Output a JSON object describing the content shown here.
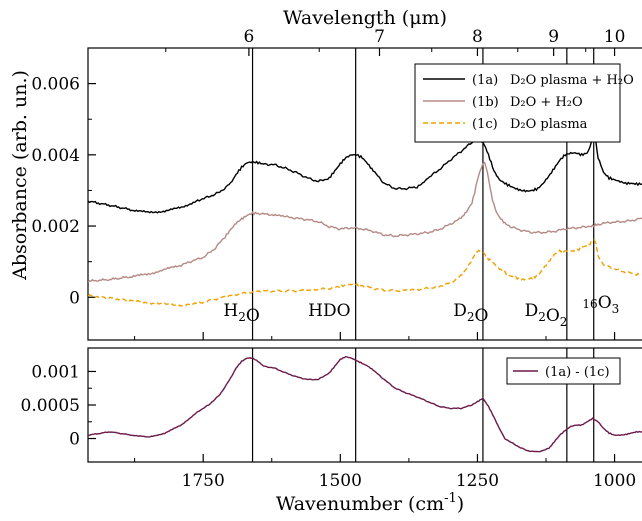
{
  "chart_data": {
    "type": "line",
    "top_axis": {
      "label": "Wavelength (μm)",
      "ticks": [
        6,
        7,
        8,
        9,
        10
      ]
    },
    "xlabel_main": "Wavenumber (cm",
    "xlabel_sup": "-1",
    "xlabel_close": ")",
    "x_ticks": [
      1750,
      1500,
      1250,
      1000
    ],
    "xlim": [
      1960,
      950
    ],
    "top_panel": {
      "ylabel": "Absorbance (arb. un.)",
      "ylim": [
        -0.0012,
        0.007
      ],
      "y_ticks": [
        0,
        0.002,
        0.004,
        0.006
      ],
      "y_tick_labels": [
        "0",
        "0.002",
        "0.004",
        "0.006"
      ],
      "legend": [
        {
          "id": "1a",
          "tag": "(1a)",
          "label": "D₂O plasma + H₂O",
          "color": "#000000",
          "dash": ""
        },
        {
          "id": "1b",
          "tag": "(1b)",
          "label": "D₂O + H₂O",
          "color": "#b58a86",
          "dash": ""
        },
        {
          "id": "1c",
          "tag": "(1c)",
          "label": "D₂O plasma",
          "color": "#f0a000",
          "dash": "5,3"
        }
      ],
      "series": [
        {
          "name": "(1a) D₂O plasma + H₂O",
          "color": "#000000",
          "x": [
            1960,
            1920,
            1880,
            1850,
            1820,
            1790,
            1760,
            1740,
            1720,
            1700,
            1690,
            1680,
            1670,
            1660,
            1650,
            1640,
            1620,
            1600,
            1580,
            1560,
            1540,
            1520,
            1510,
            1500,
            1490,
            1480,
            1470,
            1460,
            1450,
            1440,
            1420,
            1400,
            1380,
            1360,
            1350,
            1340,
            1320,
            1300,
            1280,
            1260,
            1250,
            1245,
            1240,
            1235,
            1230,
            1225,
            1220,
            1210,
            1200,
            1190,
            1180,
            1170,
            1160,
            1150,
            1140,
            1130,
            1120,
            1110,
            1100,
            1090,
            1080,
            1070,
            1060,
            1050,
            1045,
            1040,
            1037,
            1034,
            1030,
            1020,
            1010,
            1000,
            990,
            980,
            970,
            960,
            950
          ],
          "y": [
            0.0027,
            0.00258,
            0.00245,
            0.00238,
            0.00242,
            0.00252,
            0.00272,
            0.00282,
            0.00295,
            0.0032,
            0.00345,
            0.00365,
            0.00378,
            0.0038,
            0.00378,
            0.00374,
            0.00372,
            0.00362,
            0.0035,
            0.00335,
            0.00325,
            0.00335,
            0.00355,
            0.00375,
            0.00392,
            0.004,
            0.004,
            0.00392,
            0.00375,
            0.00355,
            0.0032,
            0.00305,
            0.00305,
            0.0031,
            0.0032,
            0.00335,
            0.00358,
            0.00385,
            0.0041,
            0.00435,
            0.0044,
            0.0044,
            0.00435,
            0.0042,
            0.004,
            0.00378,
            0.00355,
            0.0033,
            0.0032,
            0.00312,
            0.00305,
            0.003,
            0.00298,
            0.003,
            0.00305,
            0.0032,
            0.0034,
            0.00362,
            0.00385,
            0.004,
            0.00405,
            0.00405,
            0.004,
            0.00405,
            0.0042,
            0.00455,
            0.00458,
            0.00438,
            0.00392,
            0.0035,
            0.00335,
            0.0033,
            0.00325,
            0.0032,
            0.0032,
            0.00318,
            0.00318
          ]
        },
        {
          "name": "(1b) D₂O + H₂O",
          "color": "#b58a86",
          "x": [
            1960,
            1920,
            1880,
            1850,
            1820,
            1790,
            1770,
            1750,
            1730,
            1710,
            1700,
            1690,
            1680,
            1670,
            1660,
            1650,
            1630,
            1600,
            1580,
            1560,
            1540,
            1520,
            1500,
            1480,
            1460,
            1440,
            1420,
            1400,
            1380,
            1360,
            1340,
            1320,
            1300,
            1280,
            1270,
            1260,
            1255,
            1250,
            1245,
            1240,
            1237,
            1235,
            1232,
            1228,
            1225,
            1220,
            1215,
            1210,
            1200,
            1190,
            1170,
            1150,
            1130,
            1110,
            1090,
            1070,
            1050,
            1040,
            1030,
            1010,
            990,
            970,
            950
          ],
          "y": [
            0.00045,
            0.0005,
            0.00058,
            0.00065,
            0.00078,
            0.0009,
            0.00102,
            0.00112,
            0.00135,
            0.0017,
            0.0019,
            0.00208,
            0.0022,
            0.0023,
            0.00236,
            0.00236,
            0.00232,
            0.00226,
            0.00222,
            0.00218,
            0.00212,
            0.00198,
            0.00192,
            0.00195,
            0.00192,
            0.00185,
            0.00175,
            0.00172,
            0.00175,
            0.00178,
            0.00182,
            0.0019,
            0.00205,
            0.00222,
            0.0024,
            0.00265,
            0.00295,
            0.0033,
            0.00355,
            0.00375,
            0.00378,
            0.0037,
            0.0035,
            0.0032,
            0.0029,
            0.0026,
            0.00238,
            0.00225,
            0.00208,
            0.00198,
            0.00188,
            0.00182,
            0.00182,
            0.00185,
            0.00192,
            0.00195,
            0.00198,
            0.002,
            0.00205,
            0.0021,
            0.00212,
            0.00215,
            0.00222
          ]
        },
        {
          "name": "(1c) D₂O plasma",
          "color": "#f0a000",
          "x": [
            1960,
            1920,
            1880,
            1850,
            1820,
            1790,
            1760,
            1740,
            1720,
            1700,
            1680,
            1660,
            1640,
            1620,
            1600,
            1580,
            1560,
            1540,
            1520,
            1500,
            1490,
            1480,
            1470,
            1460,
            1440,
            1420,
            1400,
            1380,
            1360,
            1340,
            1320,
            1300,
            1280,
            1270,
            1260,
            1255,
            1250,
            1245,
            1240,
            1235,
            1230,
            1220,
            1210,
            1200,
            1190,
            1180,
            1170,
            1160,
            1150,
            1140,
            1130,
            1120,
            1110,
            1100,
            1090,
            1080,
            1070,
            1060,
            1050,
            1045,
            1040,
            1037,
            1034,
            1030,
            1020,
            1000,
            980,
            960,
            950
          ],
          "y": [
            5e-05,
            -2e-05,
            -0.0001,
            -0.00015,
            -0.0002,
            -0.00022,
            -0.00018,
            -0.0001,
            -2e-05,
            5e-05,
            0.0001,
            0.00015,
            0.00018,
            0.00017,
            0.00018,
            0.00018,
            0.0002,
            0.00022,
            0.00025,
            0.0003,
            0.00034,
            0.00036,
            0.00036,
            0.00033,
            0.00025,
            0.0002,
            0.00018,
            0.0002,
            0.00022,
            0.00025,
            0.0003,
            0.0004,
            0.0006,
            0.0008,
            0.00105,
            0.0012,
            0.0013,
            0.0013,
            0.00127,
            0.00118,
            0.00108,
            0.00095,
            0.0008,
            0.0007,
            0.0006,
            0.00055,
            0.0005,
            0.0005,
            0.00055,
            0.0006,
            0.0008,
            0.001,
            0.0012,
            0.0013,
            0.0013,
            0.0013,
            0.0013,
            0.0014,
            0.00145,
            0.0015,
            0.0016,
            0.00158,
            0.0015,
            0.00115,
            0.0009,
            0.0008,
            0.0007,
            0.00065,
            0.00063
          ]
        }
      ],
      "annotations": [
        {
          "id": "h2o",
          "parts": [
            [
              "H",
              ""
            ],
            [
              "2",
              "sub"
            ],
            [
              "O",
              ""
            ]
          ],
          "x": 1680
        },
        {
          "id": "hdo",
          "parts": [
            [
              "HDO",
              ""
            ]
          ],
          "x": 1520
        },
        {
          "id": "d2o",
          "parts": [
            [
              "D",
              ""
            ],
            [
              "2",
              "sub"
            ],
            [
              "O",
              ""
            ]
          ],
          "x": 1262
        },
        {
          "id": "d2o2",
          "parts": [
            [
              "D",
              ""
            ],
            [
              "2",
              "sub"
            ],
            [
              "O",
              ""
            ],
            [
              "2",
              "sub"
            ]
          ],
          "x": 1125
        },
        {
          "id": "o3",
          "parts": [
            [
              "16",
              "sup"
            ],
            [
              "O",
              ""
            ],
            [
              "3",
              "sub"
            ]
          ],
          "x": 1025
        }
      ],
      "vlines": [
        1660,
        1472,
        1240,
        1087,
        1038
      ]
    },
    "bottom_panel": {
      "ylim": [
        -0.00035,
        0.00135
      ],
      "y_ticks": [
        0,
        0.0005,
        0.001
      ],
      "y_tick_labels": [
        "0",
        "0.0005",
        "0.001"
      ],
      "legend": [
        {
          "label": "(1a) - (1c)",
          "color": "#6b1a4a"
        }
      ],
      "series": [
        {
          "name": "(1a) - (1c)",
          "color": "#6b1a4a",
          "x": [
            1960,
            1920,
            1880,
            1850,
            1820,
            1790,
            1760,
            1740,
            1720,
            1700,
            1690,
            1680,
            1670,
            1660,
            1650,
            1640,
            1620,
            1600,
            1580,
            1560,
            1540,
            1520,
            1510,
            1500,
            1490,
            1480,
            1470,
            1460,
            1450,
            1440,
            1420,
            1400,
            1380,
            1360,
            1340,
            1320,
            1300,
            1280,
            1260,
            1250,
            1240,
            1230,
            1220,
            1210,
            1200,
            1180,
            1160,
            1140,
            1120,
            1110,
            1100,
            1090,
            1080,
            1070,
            1060,
            1050,
            1040,
            1030,
            1020,
            1010,
            1000,
            990,
            980,
            970,
            960,
            950
          ],
          "y": [
            5e-05,
            0.0001,
            5e-05,
            2e-05,
            8e-05,
            0.0002,
            0.0004,
            0.0005,
            0.00065,
            0.0009,
            0.00105,
            0.00115,
            0.0012,
            0.0012,
            0.00115,
            0.00108,
            0.00105,
            0.00098,
            0.00092,
            0.00088,
            0.00088,
            0.00098,
            0.00108,
            0.00118,
            0.00122,
            0.0012,
            0.00116,
            0.00112,
            0.00108,
            0.00102,
            0.00088,
            0.00075,
            0.00068,
            0.00062,
            0.00055,
            0.00048,
            0.00045,
            0.00045,
            0.0005,
            0.00055,
            0.0006,
            0.00048,
            0.00032,
            0.00015,
            0.0,
            -0.0001,
            -0.00018,
            -0.0002,
            -0.00015,
            -5e-05,
            5e-05,
            0.00012,
            0.00018,
            0.0002,
            0.0002,
            0.00025,
            0.0003,
            0.00025,
            0.00015,
            8e-05,
            5e-05,
            5e-05,
            6e-05,
            8e-05,
            0.0001,
            0.0001
          ]
        }
      ],
      "vlines": [
        1660,
        1472,
        1240,
        1087,
        1038
      ]
    }
  }
}
